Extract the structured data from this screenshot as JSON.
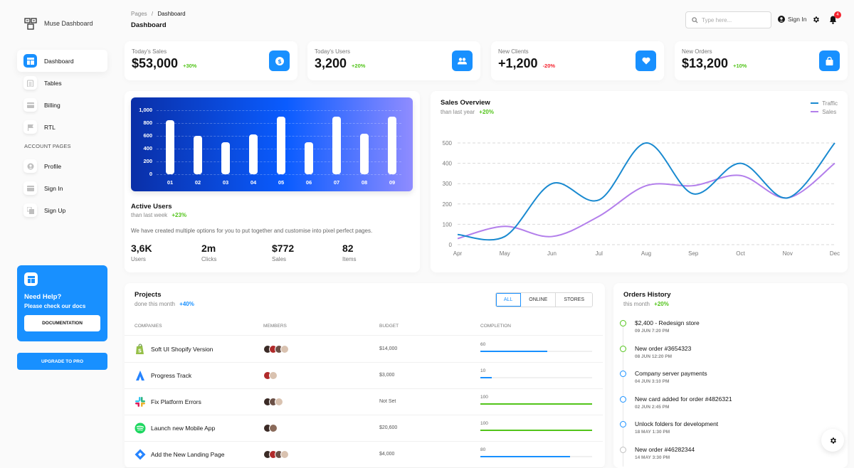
{
  "brand": {
    "name": "Muse Dashboard"
  },
  "sidebar": {
    "items": [
      {
        "label": "Dashboard",
        "icon": "dashboard-icon",
        "active": true
      },
      {
        "label": "Tables",
        "icon": "tables-icon"
      },
      {
        "label": "Billing",
        "icon": "billing-icon"
      },
      {
        "label": "RTL",
        "icon": "flag-icon"
      }
    ],
    "section_label": "ACCOUNT PAGES",
    "account_items": [
      {
        "label": "Profile",
        "icon": "profile-icon"
      },
      {
        "label": "Sign In",
        "icon": "sign-in-icon"
      },
      {
        "label": "Sign Up",
        "icon": "sign-up-icon"
      }
    ],
    "help": {
      "title": "Need Help?",
      "subtitle": "Please check our docs",
      "button": "DOCUMENTATION"
    },
    "upgrade_button": "UPGRADE TO PRO"
  },
  "header": {
    "breadcrumb_root": "Pages",
    "breadcrumb_sep": "/",
    "breadcrumb_current": "Dashboard",
    "title": "Dashboard",
    "search_placeholder": "Type here...",
    "signin_label": "Sign In",
    "notification_count": "4"
  },
  "stats": [
    {
      "label": "Today's Sales",
      "value": "$53,000",
      "pct": "+30%",
      "trend": "up",
      "icon": "dollar-icon"
    },
    {
      "label": "Today's Users",
      "value": "3,200",
      "pct": "+20%",
      "trend": "up",
      "icon": "users-icon"
    },
    {
      "label": "New Clients",
      "value": "+1,200",
      "pct": "-20%",
      "trend": "down",
      "icon": "heart-icon"
    },
    {
      "label": "New Orders",
      "value": "$13,200",
      "pct": "+10%",
      "trend": "up",
      "icon": "shopping-bag-icon"
    }
  ],
  "active_users": {
    "title": "Active Users",
    "subtitle": "than last week",
    "pct": "+23%",
    "description": "We have created multiple options for you to put together and customise into pixel perfect pages.",
    "stats": [
      {
        "value": "3,6K",
        "label": "Users"
      },
      {
        "value": "2m",
        "label": "Clicks"
      },
      {
        "value": "$772",
        "label": "Sales"
      },
      {
        "value": "82",
        "label": "Items"
      }
    ]
  },
  "sales_overview": {
    "title": "Sales Overview",
    "subtitle": "than last year",
    "pct": "+20%",
    "legend": [
      {
        "label": "Traffic",
        "color": "#1890ff"
      },
      {
        "label": "Sales",
        "color": "#b37feb"
      }
    ]
  },
  "chart_data": [
    {
      "type": "bar",
      "title": "Active Users",
      "categories": [
        "01",
        "02",
        "03",
        "04",
        "05",
        "06",
        "07",
        "08",
        "09"
      ],
      "values": [
        850,
        600,
        500,
        620,
        900,
        500,
        900,
        630,
        900
      ],
      "yticks": [
        "1,000",
        "800",
        "600",
        "400",
        "200",
        "0"
      ],
      "ylim": [
        0,
        1000
      ],
      "grid": true
    },
    {
      "type": "line",
      "title": "Sales Overview",
      "categories": [
        "Apr",
        "May",
        "Jun",
        "Jul",
        "Aug",
        "Sep",
        "Oct",
        "Nov",
        "Dec"
      ],
      "series": [
        {
          "name": "Traffic",
          "values": [
            50,
            40,
            300,
            220,
            500,
            250,
            400,
            230,
            500
          ],
          "color": "#1a8ad0"
        },
        {
          "name": "Sales",
          "values": [
            30,
            90,
            40,
            140,
            290,
            290,
            340,
            230,
            400
          ],
          "color": "#b37feb"
        }
      ],
      "yticks": [
        "500",
        "400",
        "300",
        "200",
        "100",
        "0"
      ],
      "ylim": [
        0,
        500
      ],
      "grid": true,
      "legend_position": "top-right"
    }
  ],
  "projects": {
    "title": "Projects",
    "subtitle": "done this month",
    "pct": "+40%",
    "filters": [
      "ALL",
      "ONLINE",
      "STORES"
    ],
    "active_filter": "ALL",
    "columns": [
      "COMPANIES",
      "MEMBERS",
      "BUDGET",
      "COMPLETION"
    ],
    "rows": [
      {
        "name": "Soft UI Shopify Version",
        "logo": "shopify-icon",
        "members": 4,
        "budget": "$14,000",
        "completion": "60",
        "pct": 60,
        "color": "#1890ff"
      },
      {
        "name": "Progress Track",
        "logo": "atlassian-icon",
        "members": 2,
        "budget": "$3,000",
        "completion": "10",
        "pct": 10,
        "color": "#1890ff"
      },
      {
        "name": "Fix Platform Errors",
        "logo": "slack-icon",
        "members": 3,
        "budget": "Not Set",
        "completion": "100",
        "pct": 100,
        "color": "#52c41a"
      },
      {
        "name": "Launch new Mobile App",
        "logo": "spotify-icon",
        "members": 2,
        "budget": "$20,600",
        "completion": "100",
        "pct": 100,
        "color": "#52c41a"
      },
      {
        "name": "Add the New Landing Page",
        "logo": "jira-icon",
        "members": 4,
        "budget": "$4,000",
        "completion": "80",
        "pct": 80,
        "color": "#1890ff"
      }
    ]
  },
  "orders": {
    "title": "Orders History",
    "subtitle": "this month",
    "pct": "+20%",
    "items": [
      {
        "text": "$2,400 - Redesign store",
        "time": "09 JUN 7:20 PM",
        "color": "#52c41a"
      },
      {
        "text": "New order #3654323",
        "time": "08 JUN 12:20 PM",
        "color": "#52c41a"
      },
      {
        "text": "Company server payments",
        "time": "04 JUN 3:10 PM",
        "color": "#1890ff"
      },
      {
        "text": "New card added for order #4826321",
        "time": "02 JUN 2:45 PM",
        "color": "#1890ff"
      },
      {
        "text": "Unlock folders for development",
        "time": "18 MAY 1:30 PM",
        "color": "#1890ff"
      },
      {
        "text": "New order #46282344",
        "time": "14 MAY 3:30 PM",
        "color": "#bfbfbf"
      }
    ]
  },
  "colors": {
    "primary": "#1890ff",
    "success": "#52c41a",
    "danger": "#f5222d"
  }
}
